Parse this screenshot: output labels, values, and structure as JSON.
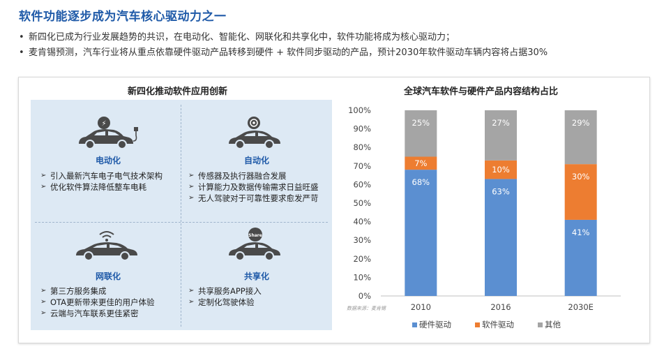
{
  "page": {
    "title": "软件功能逐步成为汽车核心驱动力之一",
    "bullets": [
      "新四化已成为行业发展趋势的共识，在电动化、智能化、网联化和共享化中，软件功能将成为核心驱动力；",
      "麦肯锡预测，汽车行业将从重点依靠硬件驱动产品转移到硬件 + 软件同步驱动的产品，预计2030年软件驱动车辆内容将占据30%"
    ],
    "bullet_symbol": "•"
  },
  "left_panel": {
    "title": "新四化推动软件应用创新",
    "quadrants": [
      {
        "label": "电动化",
        "icon": "electric-car-icon",
        "items": [
          "引入最新汽车电子电气技术架构",
          "优化软件算法降低整车电耗"
        ]
      },
      {
        "label": "自动化",
        "icon": "autonomous-car-icon",
        "items": [
          "传感器及执行器融合发展",
          "计算能力及数据传输需求日益旺盛",
          "无人驾驶对于可靠性要求愈发严苛"
        ]
      },
      {
        "label": "网联化",
        "icon": "connected-car-icon",
        "items": [
          "第三方服务集成",
          "OTA更新带来更佳的用户体验",
          "云端与汽车联系更佳紧密"
        ]
      },
      {
        "label": "共享化",
        "icon": "shared-car-icon",
        "items": [
          "共享服务APP接入",
          "定制化驾驶体验"
        ]
      }
    ],
    "icon_labels": {
      "share": "Share"
    }
  },
  "chart_data": {
    "type": "bar",
    "stacked": true,
    "percent": true,
    "title": "全球汽车软件与硬件产品内容结构占比",
    "categories": [
      "2010",
      "2016",
      "2030E"
    ],
    "series": [
      {
        "name": "硬件驱动",
        "values": [
          68,
          63,
          41
        ],
        "labels": [
          "68%",
          "63%",
          "41%"
        ],
        "color": "#5b8fd1"
      },
      {
        "name": "软件驱动",
        "values": [
          7,
          10,
          30
        ],
        "labels": [
          "7%",
          "10%",
          "30%"
        ],
        "color": "#ed7d31"
      },
      {
        "name": "其他",
        "values": [
          25,
          27,
          29
        ],
        "labels": [
          "25%",
          "27%",
          "29%"
        ],
        "color": "#a5a5a5"
      }
    ],
    "yticks": [
      "0%",
      "10%",
      "20%",
      "30%",
      "40%",
      "50%",
      "60%",
      "70%",
      "80%",
      "90%",
      "100%"
    ],
    "ylim": [
      0,
      100
    ],
    "legend_position": "bottom",
    "source": "数据来源：麦肯锡"
  },
  "colors": {
    "title": "#1f5aa8",
    "panel_bg": "#dde9f4",
    "icon": "#4a4a4a"
  }
}
